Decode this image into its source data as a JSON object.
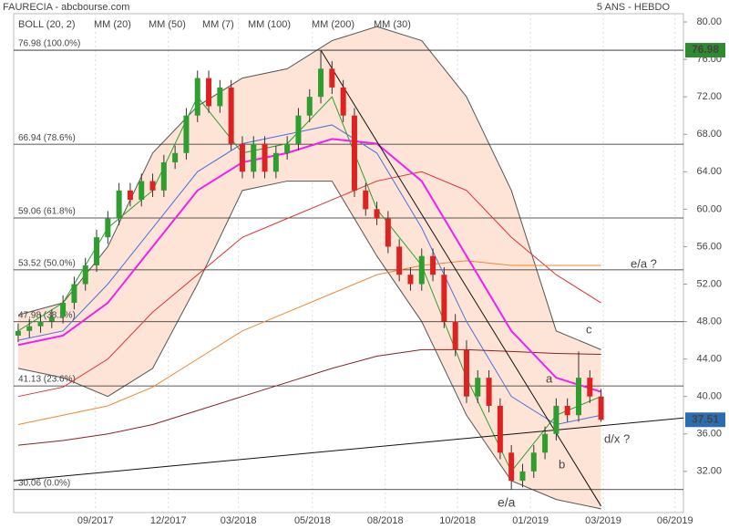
{
  "chart_data": {
    "type": "candlestick",
    "title": "FAURECIA - abcbourse.com",
    "subtitle": "5 ANS - HEBDO",
    "xlim": [
      -0.8,
      118.7
    ],
    "xticks": [
      {
        "value": 13.8,
        "label": "09/2017"
      },
      {
        "value": 26.8,
        "label": "12/2017"
      },
      {
        "value": 39.3,
        "label": "03/2018"
      },
      {
        "value": 52.5,
        "label": "05/2018"
      },
      {
        "value": 65.5,
        "label": "08/2018"
      },
      {
        "value": 78.4,
        "label": "10/2018"
      },
      {
        "value": 91.4,
        "label": "01/2019"
      },
      {
        "value": 104.4,
        "label": "03/2019"
      },
      {
        "value": 117.2,
        "label": "06/2019"
      }
    ],
    "ylim": [
      27.6,
      80.88
    ],
    "yticks": [
      {
        "value": 80,
        "label": "80.00"
      },
      {
        "value": 76,
        "label": "76.00"
      },
      {
        "value": 72,
        "label": "72.00"
      },
      {
        "value": 68,
        "label": "68.00"
      },
      {
        "value": 64,
        "label": "64.00"
      },
      {
        "value": 60,
        "label": "60.00"
      },
      {
        "value": 56,
        "label": "56.00"
      },
      {
        "value": 52,
        "label": "52.00"
      },
      {
        "value": 48,
        "label": "48.00"
      },
      {
        "value": 44,
        "label": "44.00"
      },
      {
        "value": 40,
        "label": "40.00"
      },
      {
        "value": 36,
        "label": "36.00"
      },
      {
        "value": 32,
        "label": "32.00"
      }
    ],
    "up_color": "#2e9e2e",
    "down_color": "#dd2222",
    "candles": {
      "x": [
        0,
        2,
        4,
        6,
        8,
        10,
        12,
        14,
        16,
        18,
        20,
        22,
        24,
        26,
        28,
        30,
        32,
        34,
        36,
        38,
        40,
        42,
        44,
        46,
        48,
        50,
        52,
        54,
        56,
        58,
        60,
        62,
        64,
        66,
        68,
        70,
        72,
        74,
        76,
        78,
        80,
        82,
        84,
        86,
        88,
        90,
        92,
        94,
        96,
        98,
        100,
        102,
        104
      ],
      "open": [
        46.5,
        47,
        47.5,
        48,
        48.5,
        50,
        52,
        54,
        57,
        59,
        62,
        61,
        63,
        62,
        65,
        66,
        70,
        74,
        71,
        73,
        67,
        64,
        67,
        64,
        66,
        67,
        70,
        72,
        75,
        73,
        70,
        62,
        60,
        59,
        56,
        53,
        52,
        55,
        53,
        48,
        45,
        40,
        42,
        39,
        34,
        31,
        32,
        34,
        36,
        39,
        38,
        42,
        40
      ],
      "high": [
        47.8,
        48.3,
        48.8,
        49.3,
        50.8,
        52.8,
        54.8,
        57.8,
        59.8,
        62.8,
        62.8,
        63.8,
        63.8,
        65.8,
        66.8,
        70.8,
        74.8,
        74.8,
        73.8,
        73.8,
        67.8,
        67.8,
        67.8,
        66.8,
        67.8,
        70.8,
        72.8,
        76.98,
        75.8,
        73.8,
        70.8,
        62.8,
        60.8,
        59.8,
        56.8,
        53.8,
        55.8,
        55.8,
        53.8,
        48.8,
        46,
        42.8,
        42.8,
        39.8,
        34.8,
        32.8,
        34.8,
        36.8,
        39.8,
        39.8,
        44.8,
        42.8,
        40.8
      ],
      "low": [
        45.8,
        46.3,
        46.8,
        47.3,
        47.8,
        49.3,
        51.3,
        53.3,
        56.3,
        58.3,
        60.3,
        60.3,
        61.3,
        61.3,
        64.3,
        65.3,
        69.3,
        70.3,
        70.3,
        66.3,
        63.3,
        63.3,
        63.3,
        63.3,
        65.3,
        66.3,
        69.3,
        71.3,
        72.3,
        69.3,
        61.3,
        59.3,
        58.3,
        55.3,
        52.3,
        51.3,
        51.3,
        52.3,
        47.3,
        44.3,
        39.3,
        39.3,
        38.3,
        33.3,
        30.06,
        30.3,
        31.3,
        33.3,
        35.3,
        37.3,
        37.3,
        39.3,
        37.3
      ],
      "close": [
        47,
        47.5,
        48,
        48.5,
        50,
        52,
        54,
        57,
        59,
        62,
        61,
        63,
        62,
        65,
        66,
        70,
        74,
        71,
        73,
        67,
        64,
        67,
        64,
        66,
        67,
        70,
        72,
        75,
        73,
        70,
        62,
        60,
        59,
        56,
        53,
        52,
        55,
        53,
        48,
        45,
        40,
        42,
        39,
        34,
        31,
        32,
        34,
        36,
        39,
        38,
        42,
        40,
        37.51
      ]
    },
    "line_x": [
      0,
      8,
      16,
      24,
      32,
      40,
      48,
      56,
      64,
      72,
      80,
      88,
      96,
      104
    ],
    "bollinger": {
      "name": "BOLL (20, 2)",
      "color": "#555555",
      "fill": "#fde4d6",
      "upper": [
        48.7,
        50,
        56,
        66,
        71,
        74,
        75,
        78,
        79.5,
        78,
        72,
        62,
        47,
        45
      ],
      "lower": [
        43,
        42,
        40,
        43,
        52,
        62,
        63,
        63,
        55,
        48,
        38,
        31,
        29,
        28
      ]
    },
    "series": [
      {
        "name": "MM (20)",
        "color": "#4a6fe0",
        "values": [
          46,
          47,
          52,
          58,
          64,
          67,
          68,
          69,
          66,
          58,
          48,
          40,
          37,
          38
        ]
      },
      {
        "name": "MM (50)",
        "color": "#dd3333",
        "values": [
          40,
          41,
          44,
          49,
          53,
          57,
          59,
          61,
          63,
          64,
          62,
          57,
          53,
          50
        ]
      },
      {
        "name": "MM (7)",
        "color": "#2e9e2e",
        "values": [
          47,
          50,
          58,
          62,
          72,
          66,
          67,
          72,
          60,
          54,
          42,
          32,
          38,
          40
        ]
      },
      {
        "name": "MM (100)",
        "color": "#ee8833",
        "values": [
          37,
          38,
          39,
          41,
          44,
          47,
          49,
          51,
          53,
          54,
          54.5,
          54,
          54,
          54
        ]
      },
      {
        "name": "MM (200)",
        "color": "#882222",
        "values": [
          34.8,
          35.3,
          36,
          37,
          38.5,
          40,
          41.5,
          43,
          44.3,
          45,
          45,
          44.8,
          44.6,
          44.5
        ]
      },
      {
        "name": "MM (30)",
        "color": "#ee22ee",
        "values": [
          45.5,
          46.5,
          50,
          56,
          62,
          65,
          66,
          67.5,
          67,
          63,
          55,
          47,
          42,
          40.5
        ]
      }
    ],
    "levels": [
      {
        "value": 76.98,
        "label": "76.98  (100.0%)"
      },
      {
        "value": 66.94,
        "label": "66.94  (78.6%)"
      },
      {
        "value": 59.06,
        "label": "59.06  (61.8%)"
      },
      {
        "value": 53.52,
        "label": "53.52  (50.0%)"
      },
      {
        "value": 47.98,
        "label": "47.98  (38.2%)"
      },
      {
        "value": 41.13,
        "label": "41.13  (23.6%)"
      },
      {
        "value": 30.06,
        "label": "30.06  (0.0%)"
      }
    ],
    "trendlines": [
      {
        "x": [
          54,
          104
        ],
        "values": [
          76.98,
          28.3
        ]
      },
      {
        "x": [
          -0.8,
          118.7
        ],
        "values": [
          31,
          37.7
        ]
      }
    ],
    "price_tags": [
      {
        "value": 76.98,
        "color": "#2e8b2e"
      },
      {
        "value": 37.51,
        "color": "#2a6db0"
      }
    ],
    "annotations": [
      {
        "text": "e/a ?",
        "color": "#1a237e"
      },
      {
        "text": "c",
        "color": "#1a237e"
      },
      {
        "text": "a",
        "color": "#1a237e"
      },
      {
        "text": "b",
        "color": "#1a237e"
      },
      {
        "text": "d/x ?",
        "color": "#1a237e"
      },
      {
        "text": "e/a",
        "color": "#dd2222"
      }
    ]
  }
}
